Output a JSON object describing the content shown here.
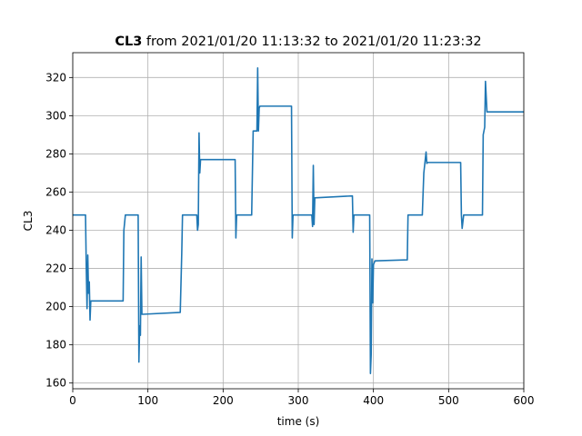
{
  "chart_data": {
    "type": "line",
    "title": {
      "bold": "CL3",
      "rest": " from 2021/01/20 11:13:32 to 2021/01/20 11:23:32"
    },
    "xlabel": "time (s)",
    "ylabel": "CL3",
    "color": "#1f77b4",
    "grid": true,
    "xlim": [
      0,
      600
    ],
    "xticks": [
      0,
      100,
      200,
      300,
      400,
      500,
      600
    ],
    "ylim": [
      157,
      333
    ],
    "yticks": [
      160,
      180,
      200,
      220,
      240,
      260,
      280,
      300,
      320
    ],
    "x": [
      0,
      17,
      18,
      19,
      20,
      21,
      22,
      23,
      24,
      25,
      67,
      68,
      70,
      87,
      88,
      89,
      90,
      91,
      92,
      93,
      143,
      145,
      146,
      165,
      166,
      167,
      168,
      169,
      170,
      216,
      217,
      218,
      238,
      240,
      243,
      245,
      246,
      247,
      248,
      249,
      291,
      292,
      293,
      318,
      319,
      320,
      321,
      322,
      372,
      373,
      374,
      395,
      396,
      397,
      398,
      399,
      400,
      402,
      445,
      446,
      465,
      467,
      470,
      471,
      472,
      516,
      517,
      518,
      520,
      545,
      546,
      548,
      549,
      551,
      552,
      600
    ],
    "values": [
      248,
      248,
      220,
      199,
      227,
      207,
      213,
      193,
      203,
      203,
      203,
      240,
      248,
      248,
      171,
      190,
      185,
      226,
      196,
      196,
      197,
      228,
      248,
      248,
      240,
      243,
      291,
      270,
      277,
      277,
      236,
      248,
      248,
      292,
      292,
      292,
      325,
      292,
      304,
      305,
      305,
      236,
      248,
      248,
      242,
      274,
      243,
      257,
      258,
      239,
      248,
      248,
      165,
      175,
      225,
      202,
      222,
      224,
      224.5,
      248,
      248,
      270,
      281,
      275,
      275.5,
      275.5,
      248,
      241,
      248,
      248,
      290,
      294,
      318,
      302,
      302,
      302
    ]
  }
}
